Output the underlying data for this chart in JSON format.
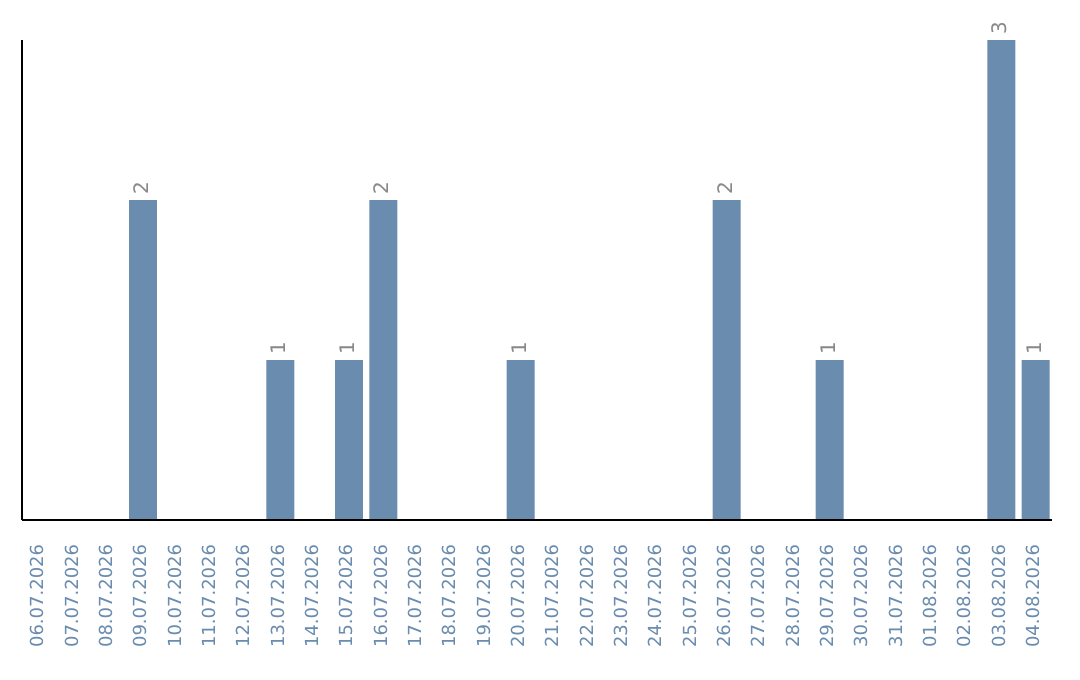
{
  "chart_data": {
    "type": "bar",
    "categories": [
      "06.07.2026",
      "07.07.2026",
      "08.07.2026",
      "09.07.2026",
      "10.07.2026",
      "11.07.2026",
      "12.07.2026",
      "13.07.2026",
      "14.07.2026",
      "15.07.2026",
      "16.07.2026",
      "17.07.2026",
      "18.07.2026",
      "19.07.2026",
      "20.07.2026",
      "21.07.2026",
      "22.07.2026",
      "23.07.2026",
      "24.07.2026",
      "25.07.2026",
      "26.07.2026",
      "27.07.2026",
      "28.07.2026",
      "29.07.2026",
      "30.07.2026",
      "31.07.2026",
      "01.08.2026",
      "02.08.2026",
      "03.08.2026",
      "04.08.2026"
    ],
    "values": [
      0,
      0,
      0,
      2,
      0,
      0,
      0,
      1,
      0,
      1,
      2,
      0,
      0,
      0,
      1,
      0,
      0,
      0,
      0,
      0,
      2,
      0,
      0,
      1,
      0,
      0,
      0,
      0,
      3,
      1
    ],
    "value_labels": [
      null,
      null,
      null,
      "2",
      null,
      null,
      null,
      "1",
      null,
      "1",
      "2",
      null,
      null,
      null,
      "1",
      null,
      null,
      null,
      null,
      null,
      "2",
      null,
      null,
      "1",
      null,
      null,
      null,
      null,
      "3",
      "1"
    ],
    "color": "#6a8caf",
    "tick_labels": "x"
  }
}
